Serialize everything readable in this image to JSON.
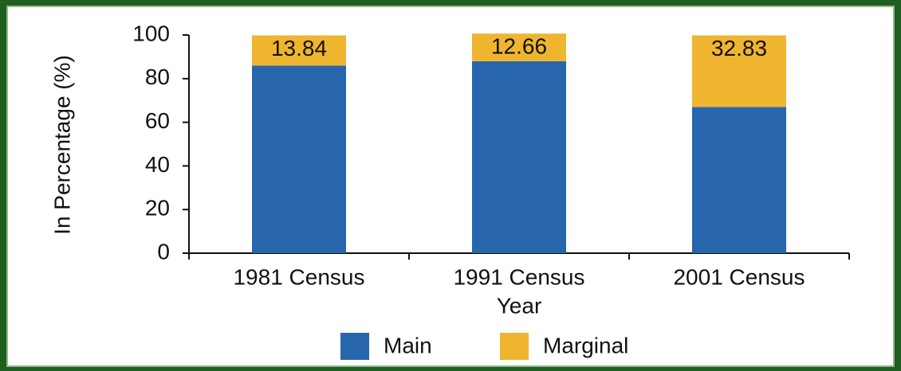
{
  "chart_data": {
    "type": "stacked_bar",
    "categories": [
      "1981 Census",
      "1991 Census",
      "2001 Census"
    ],
    "series": [
      {
        "name": "Main",
        "color": "#2766ad",
        "values": [
          86,
          88,
          67
        ]
      },
      {
        "name": "Marginal",
        "color": "#f0b52f",
        "values": [
          13.84,
          12.66,
          32.83
        ],
        "show_labels": true
      }
    ],
    "x_label": "Year",
    "y_label": "In Percentage (%)",
    "ylim": [
      0,
      100
    ],
    "yticks": [
      0,
      20,
      40,
      60,
      80,
      100
    ],
    "grid": false
  }
}
